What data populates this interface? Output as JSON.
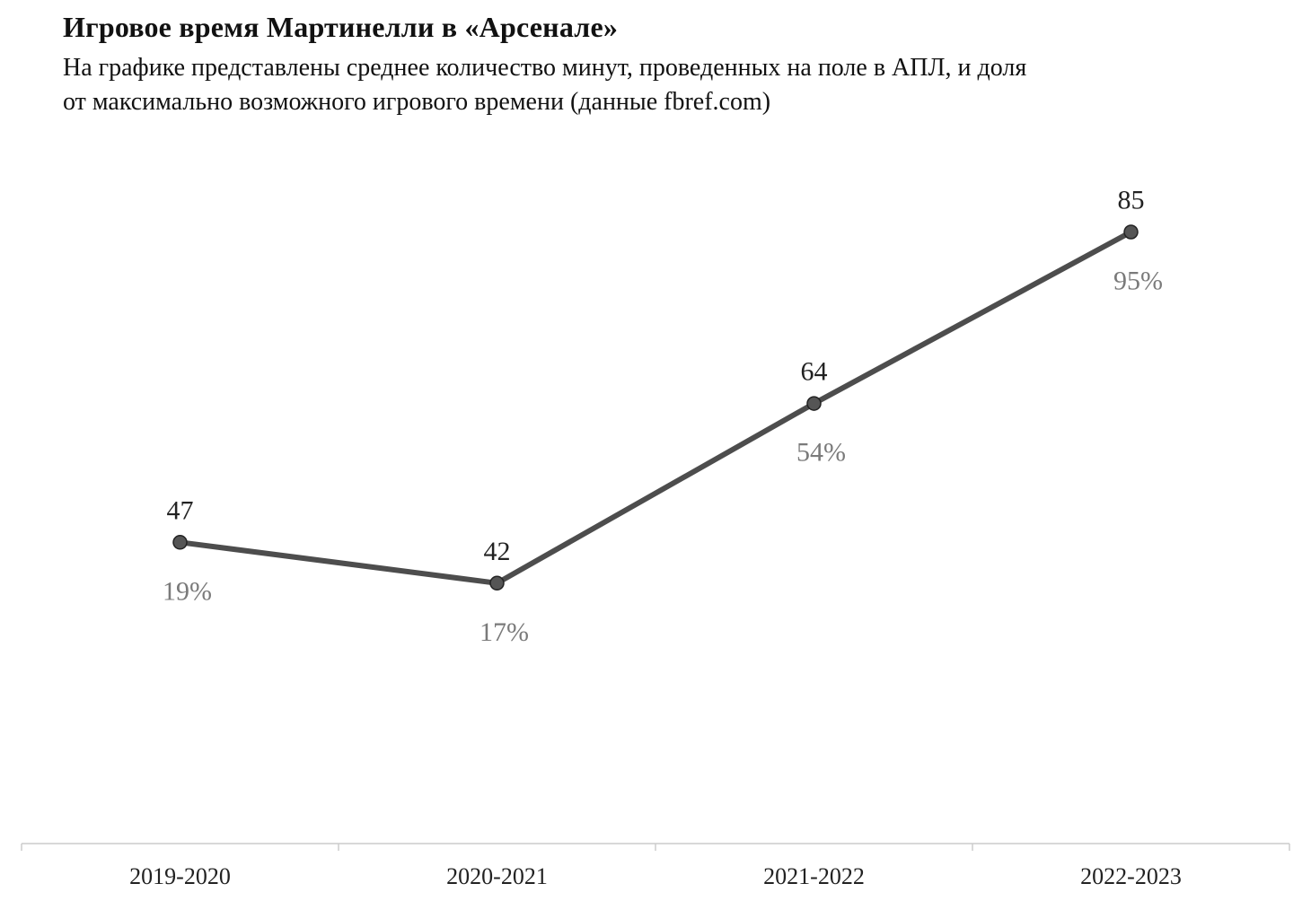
{
  "title": "Игровое время Мартинелли в «Арсенале»",
  "subtitle_lines": [
    "На графике представлены  среднее  количество  минут,  проведенных  на поле в АПЛ,  и доля",
    "от максимально  возможного игрового времени  (данные  fbref.com)"
  ],
  "colors": {
    "line": "#4d4d4d",
    "marker": "#555555",
    "value_label": "#222222",
    "share_label": "#7a7a7a",
    "axis": "#cccccc"
  },
  "chart_data": {
    "type": "line",
    "categories": [
      "2019-2020",
      "2020-2021",
      "2021-2022",
      "2022-2023"
    ],
    "series": [
      {
        "values": [
          47,
          42,
          64,
          85
        ],
        "point_labels": [
          "47",
          "42",
          "64",
          "85"
        ],
        "secondary_labels": [
          "19%",
          "17%",
          "54%",
          "95%"
        ],
        "secondary_values": [
          19,
          17,
          54,
          95
        ]
      }
    ],
    "xlabel": "",
    "ylabel": "",
    "grid": false,
    "legend": "none"
  }
}
